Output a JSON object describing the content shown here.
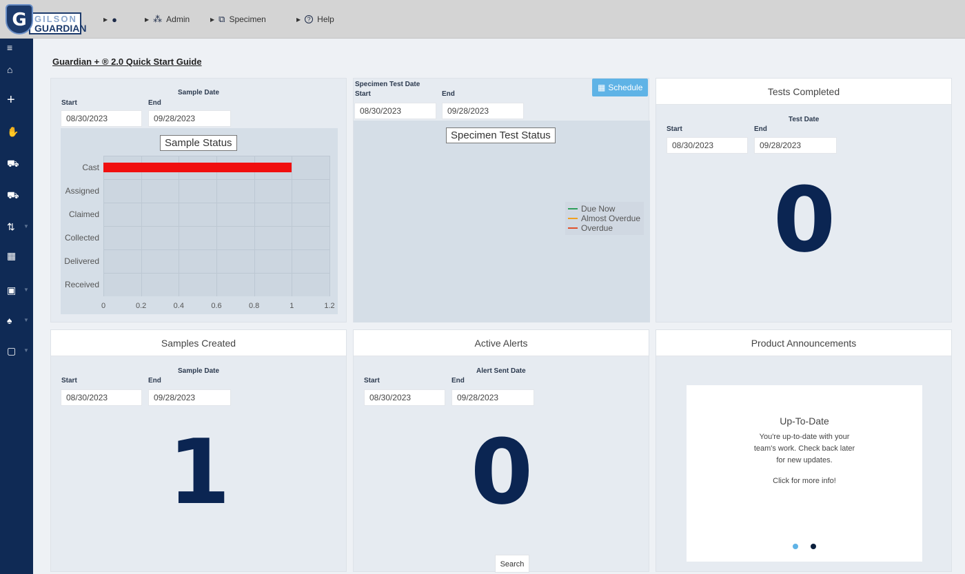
{
  "brand": {
    "top": "GILSON",
    "bottom": "GUARDIAN",
    "shield_letter": "G"
  },
  "nav": {
    "user_icon": "person-icon",
    "admin_label": "Admin",
    "specimen_label": "Specimen",
    "help_label": "Help",
    "help_glyph": "?"
  },
  "sidebar": {
    "items": [
      {
        "icon": "menu-icon",
        "glyph": "≡"
      },
      {
        "icon": "home-icon",
        "glyph": "⌂"
      },
      {
        "icon": "plus-icon",
        "glyph": "+"
      },
      {
        "icon": "hand-icon",
        "glyph": "✋"
      },
      {
        "icon": "cart-icon",
        "glyph": "⛟"
      },
      {
        "icon": "truck-icon",
        "glyph": "⛟"
      },
      {
        "icon": "sort-icon",
        "glyph": "⇅"
      },
      {
        "icon": "qr-code-icon",
        "glyph": "▦"
      },
      {
        "icon": "calculator-icon",
        "glyph": "▣"
      },
      {
        "icon": "bell-icon",
        "glyph": "♠"
      },
      {
        "icon": "clipboard-icon",
        "glyph": "▢"
      }
    ]
  },
  "page_title": "Guardian + ® 2.0 Quick Start Guide",
  "sample_status": {
    "filter_title": "Sample Date",
    "start_label": "Start",
    "end_label": "End",
    "start_value": "08/30/2023",
    "end_value": "09/28/2023",
    "chart_data": {
      "type": "bar",
      "title": "Sample Status",
      "orientation": "horizontal",
      "categories": [
        "Cast",
        "Assigned",
        "Claimed",
        "Collected",
        "Delivered",
        "Received"
      ],
      "values": [
        1,
        0,
        0,
        0,
        0,
        0
      ],
      "xlim": [
        0,
        1.2
      ],
      "xticks": [
        "0",
        "0.2",
        "0.4",
        "0.6",
        "0.8",
        "1",
        "1.2"
      ],
      "grid": true,
      "bar_color": "#f00f0f"
    }
  },
  "specimen_test": {
    "filter_title": "Specimen Test Date",
    "start_label": "Start",
    "end_label": "End",
    "start_value": "08/30/2023",
    "end_value": "09/28/2023",
    "schedule_label": "Schedule",
    "chart_data": {
      "type": "line",
      "title": "Specimen Test Status",
      "series": [
        {
          "name": "Due Now",
          "values": [],
          "color": "#2e9e5b"
        },
        {
          "name": "Almost Overdue",
          "values": [],
          "color": "#f0a020"
        },
        {
          "name": "Overdue",
          "values": [],
          "color": "#e0502a"
        }
      ],
      "legend": "right"
    }
  },
  "tests_completed": {
    "title": "Tests Completed",
    "filter_title": "Test Date",
    "start_label": "Start",
    "end_label": "End",
    "start_value": "08/30/2023",
    "end_value": "09/28/2023",
    "count": "0"
  },
  "samples_created": {
    "title": "Samples Created",
    "filter_title": "Sample Date",
    "start_label": "Start",
    "end_label": "End",
    "start_value": "08/30/2023",
    "end_value": "09/28/2023",
    "count": "1"
  },
  "active_alerts": {
    "title": "Active Alerts",
    "filter_title": "Alert Sent Date",
    "start_label": "Start",
    "end_label": "End",
    "start_value": "08/30/2023",
    "end_value": "09/28/2023",
    "count": "0",
    "search_label": "Search"
  },
  "announcements": {
    "title": "Product Announcements",
    "card_title": "Up-To-Date",
    "card_line1": "You're up-to-date with your",
    "card_line2": "team's work. Check back later",
    "card_line3": "for new updates.",
    "card_link": "Click for more info!",
    "dot_active_color": "#0b1f3d",
    "dot_inactive_color": "#5fb3e6"
  }
}
